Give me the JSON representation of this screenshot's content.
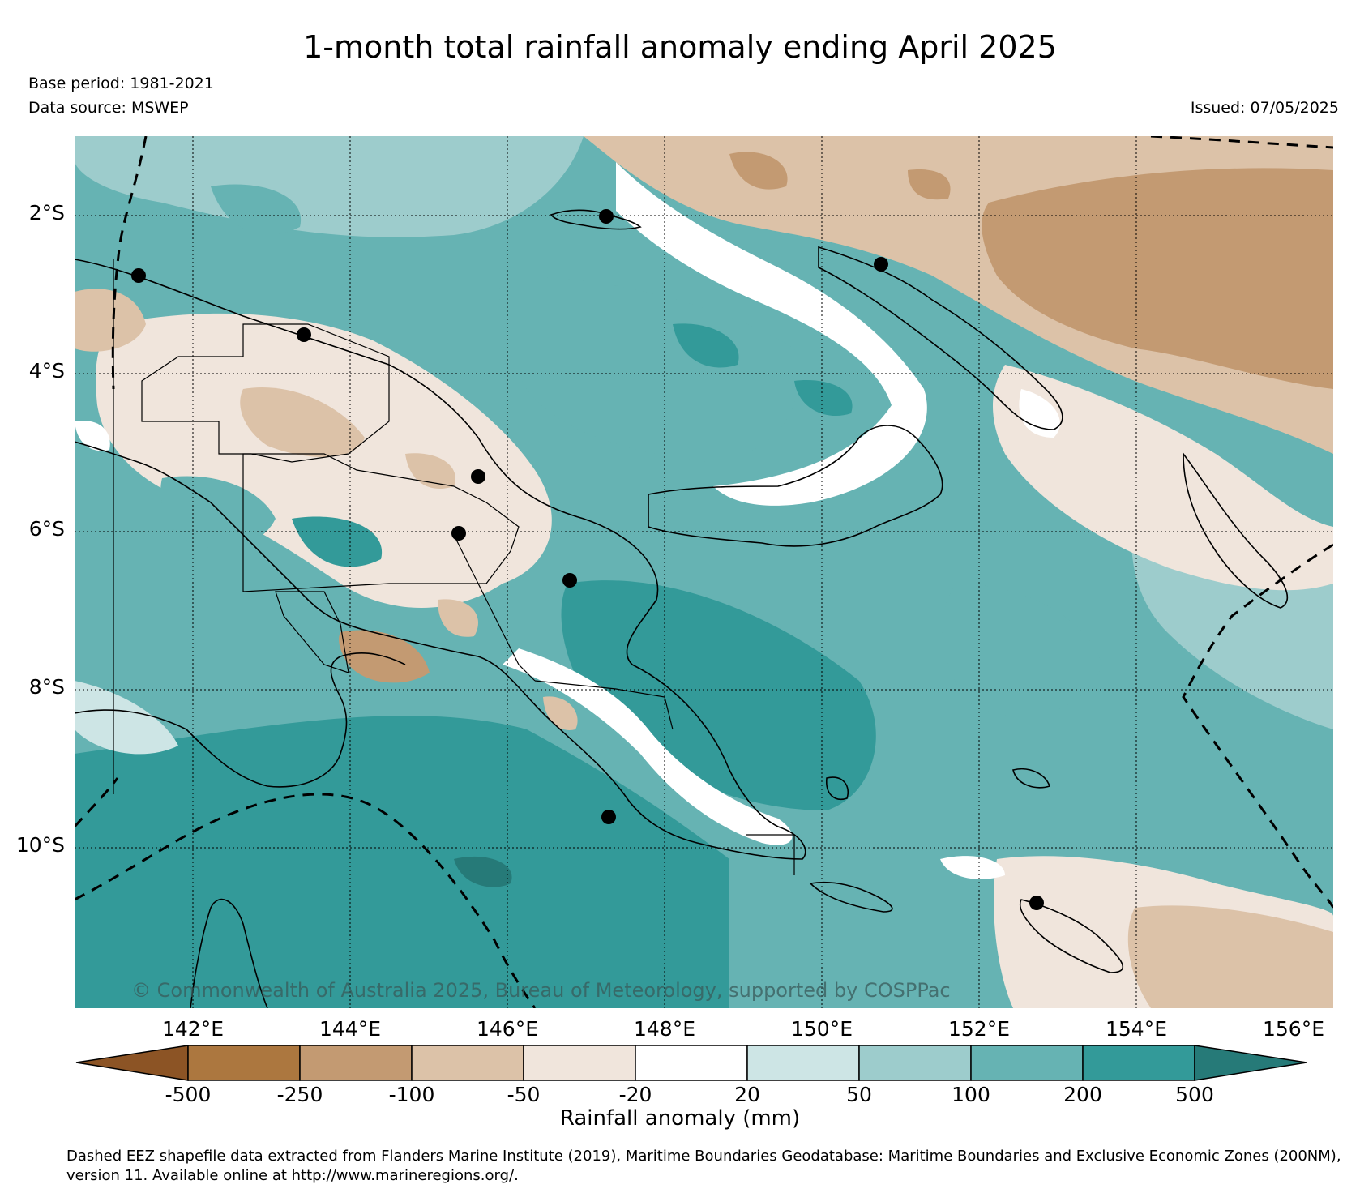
{
  "title": "1-month total rainfall anomaly ending April 2025",
  "base_period": "Base period: 1981-2021",
  "data_source": "Data source: MSWEP",
  "issued": "Issued: 07/05/2025",
  "copyright": "© Commonwealth of Australia 2025, Bureau of Meteorology, supported by COSPPac",
  "lat_ticks": [
    "2°S",
    "4°S",
    "6°S",
    "8°S",
    "10°S"
  ],
  "lon_ticks": [
    "142°E",
    "144°E",
    "146°E",
    "148°E",
    "150°E",
    "152°E",
    "154°E",
    "156°E"
  ],
  "colorbar": {
    "title": "Rainfall anomaly (mm)",
    "labels": [
      "-500",
      "-250",
      "-100",
      "-50",
      "-20",
      "20",
      "50",
      "100",
      "200",
      "500"
    ],
    "colors": {
      "below_min": "#8c5425",
      "bins": [
        "#ac773f",
        "#c39a72",
        "#dcc2a8",
        "#f0e5dc",
        "#ffffff",
        "#cde5e5",
        "#9dcccc",
        "#66b3b3",
        "#339a99"
      ],
      "above_max": "#267a78"
    }
  },
  "footer": "Dashed EEZ shapefile data extracted from Flanders Marine Institute (2019), Maritime Boundaries Geodatabase: Maritime Boundaries and Exclusive Economic Zones (200NM), version 11. Available online at http://www.marineregions.org/."
}
